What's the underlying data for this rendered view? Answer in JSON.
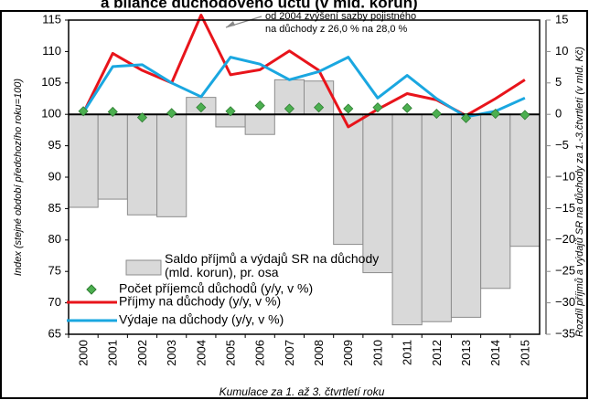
{
  "chart_data": {
    "type": "combo",
    "title": "a bilance důchodového účtu (v mld. korun)",
    "x_label": "Kumulace za 1. až 3. čtvrtletí roku",
    "y_label": "Index (stejné období předchozího roku=100)",
    "y2_label": "Rozdíl příjmů a výdajů SR na důchody za 1.-3.čtvrtletí (v mld. Kč)",
    "annotation": [
      "od 2004 zvýšení sazby pojistného",
      "na důchody z 26,0 % na 28,0 %"
    ],
    "categories": [
      "2000",
      "2001",
      "2002",
      "2003",
      "2004",
      "2005",
      "2006",
      "2007",
      "2008",
      "2009",
      "2010",
      "2011",
      "2012",
      "2013",
      "2014",
      "2015"
    ],
    "ylim": [
      65,
      115
    ],
    "yticks": [
      65,
      70,
      75,
      80,
      85,
      90,
      95,
      100,
      105,
      110,
      115
    ],
    "y2lim": [
      -35,
      15
    ],
    "y2ticks": [
      {
        "value": -35,
        "label": "−35"
      },
      {
        "value": -30,
        "label": "−30"
      },
      {
        "value": -25,
        "label": "−25"
      },
      {
        "value": -20,
        "label": "−20"
      },
      {
        "value": -15,
        "label": "−15"
      },
      {
        "value": -10,
        "label": "−10"
      },
      {
        "value": -5,
        "label": "−5"
      },
      0,
      5,
      10,
      15
    ],
    "series": [
      {
        "name": "Saldo příjmů a výdajů SR na důchody (mld. korun), pr. osa",
        "type": "bar",
        "axis": "y2",
        "color": "#d9d9d9",
        "values": [
          -14.8,
          -13.5,
          -16,
          -16.3,
          2.7,
          -2,
          -3.2,
          5.5,
          5.3,
          -20.7,
          -25.2,
          -33.5,
          -33,
          -32.3,
          -27.7,
          -21
        ]
      },
      {
        "name": "Počet příjemců důchodů (y/y, v %)",
        "type": "scatter",
        "color": "#4caf50",
        "values": [
          100.5,
          100.4,
          99.5,
          100.2,
          101.1,
          100.5,
          101.4,
          100.9,
          101.1,
          100.9,
          101.1,
          101.0,
          100.1,
          99.4,
          100.1,
          99.9
        ]
      },
      {
        "name": "Příjmy na důchody (y/y, v %)",
        "type": "line",
        "color": "#e8141b",
        "values": [
          100.2,
          109.7,
          107,
          105,
          115.8,
          106.3,
          107.1,
          110.1,
          107,
          98,
          100.8,
          103.3,
          102.3,
          99.8,
          102.5,
          105.5
        ]
      },
      {
        "name": "Výdaje na důchody (y/y, v %)",
        "type": "line",
        "color": "#1aa7e0",
        "values": [
          100.3,
          107.6,
          107.9,
          105,
          102.8,
          109.1,
          108,
          105.5,
          106.8,
          109.1,
          102.6,
          106.2,
          102.5,
          99.6,
          100.5,
          102.6
        ]
      }
    ]
  }
}
